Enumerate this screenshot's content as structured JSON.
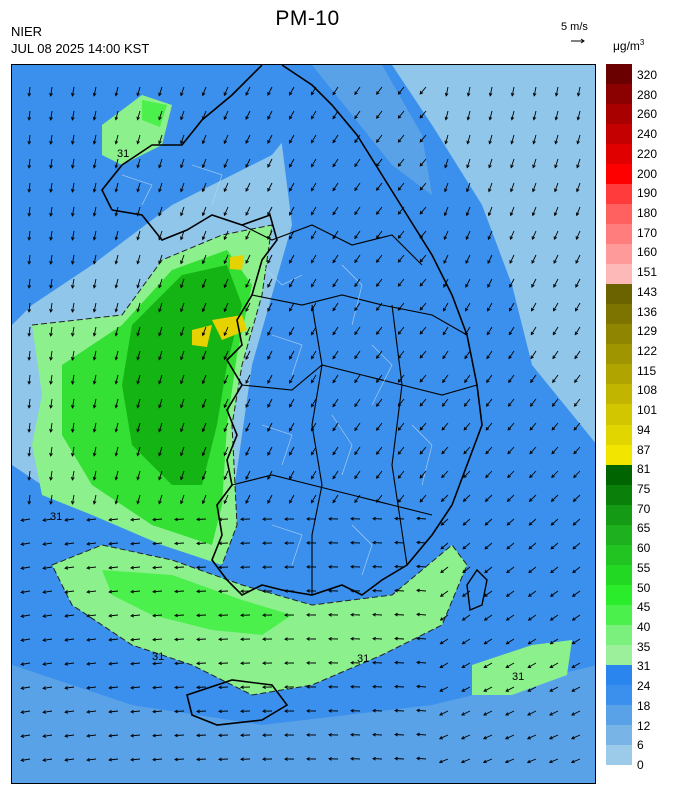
{
  "header": {
    "title": "PM-10",
    "agency": "NIER",
    "timestamp": "JUL 08 2025 14:00 KST",
    "wind_scale": "5 m/s",
    "unit": "μg/m",
    "unit_exponent": "3"
  },
  "legend": {
    "labels": [
      "320",
      "280",
      "260",
      "240",
      "220",
      "200",
      "190",
      "180",
      "170",
      "160",
      "151",
      "143",
      "136",
      "129",
      "122",
      "115",
      "108",
      "101",
      "94",
      "87",
      "81",
      "75",
      "70",
      "65",
      "60",
      "55",
      "50",
      "45",
      "40",
      "35",
      "31",
      "24",
      "18",
      "12",
      "6",
      "0"
    ],
    "colors": [
      "#6b0000",
      "#8b0000",
      "#a80000",
      "#c40000",
      "#e00000",
      "#ff0000",
      "#ff3b3b",
      "#ff6060",
      "#ff7d7d",
      "#ff9a9a",
      "#fdb8b8",
      "#6b6300",
      "#7d7400",
      "#8f8500",
      "#9f9500",
      "#b0a500",
      "#c1b500",
      "#d2c600",
      "#e2d600",
      "#f2e600",
      "#006400",
      "#0a7f0a",
      "#149a14",
      "#1eb01e",
      "#22c422",
      "#22d822",
      "#2aec2a",
      "#4cf04c",
      "#7cf07c",
      "#9cf09c",
      "#2a86ee",
      "#3a90ec",
      "#5aa2e8",
      "#78b4e6",
      "#9ccbea"
    ]
  },
  "map": {
    "contour_label": "31",
    "sea_color": "#8fc6ea",
    "low_color": "#3a90ec",
    "mid_color": "#5aa2e8",
    "light_green": "#8cf08c",
    "green": "#34e034",
    "dark_green": "#14b414",
    "yellow": "#e6d200"
  }
}
